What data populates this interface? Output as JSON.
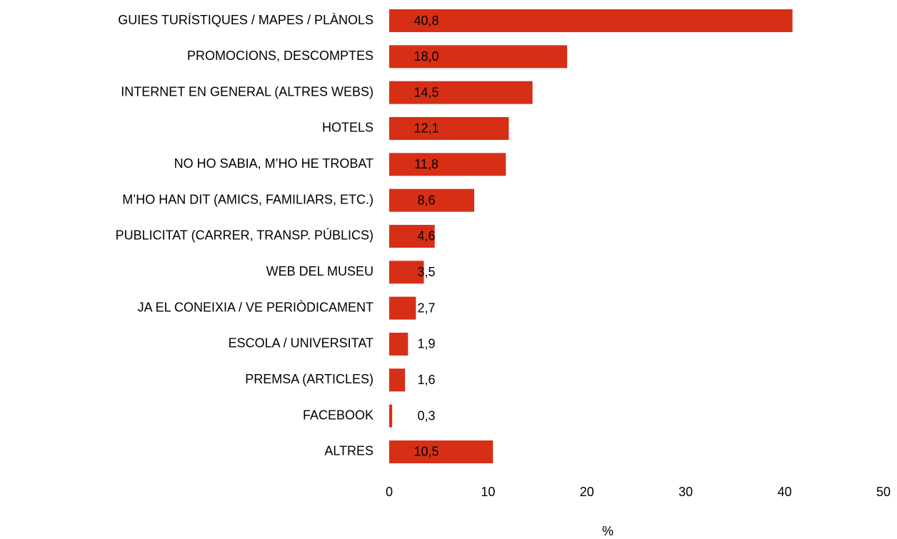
{
  "chart_data": {
    "type": "hbar",
    "categories": [
      "GUIES TURÍSTIQUES / MAPES / PLÀNOLS",
      "PROMOCIONS, DESCOMPTES",
      "INTERNET EN GENERAL (ALTRES WEBS)",
      "HOTELS",
      "NO HO SABIA, M’HO HE TROBAT",
      "M’HO HAN DIT (AMICS, FAMILIARS, ETC.)",
      "PUBLICITAT (CARRER, TRANSP. PÚBLICS)",
      "WEB DEL MUSEU",
      "JA EL CONEIXIA / VE PERIÒDICAMENT",
      "ESCOLA / UNIVERSITAT",
      "PREMSA (ARTICLES)",
      "FACEBOOK",
      "ALTRES"
    ],
    "values": [
      40.8,
      18.0,
      14.5,
      12.1,
      11.8,
      8.6,
      4.6,
      3.5,
      2.7,
      1.9,
      1.6,
      0.3,
      10.5
    ],
    "value_labels": [
      "40,8",
      "18,0",
      "14,5",
      "12,1",
      "11,8",
      "8,6",
      "4,6",
      "3,5",
      "2,7",
      "1,9",
      "1,6",
      "0,3",
      "10,5"
    ],
    "color": "#d62f16",
    "xlim": [
      0,
      50
    ],
    "xticks": [
      0,
      10,
      20,
      30,
      40,
      50
    ],
    "xlabel": "%",
    "grid": false
  }
}
